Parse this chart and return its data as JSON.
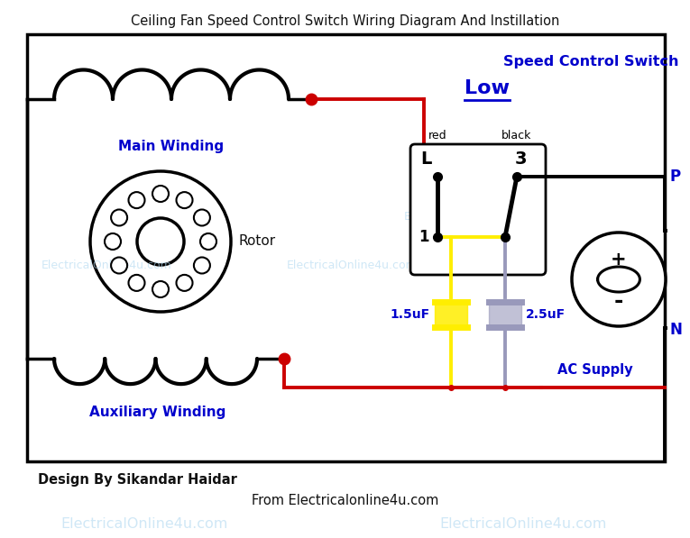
{
  "title": "Ceiling Fan Speed Control Switch Wiring Diagram And Instillation",
  "bg_color": "#ffffff",
  "wire_red": "#cc0000",
  "wire_black": "#111111",
  "wire_yellow": "#ffee00",
  "wire_purple": "#9999bb",
  "text_blue": "#0000cc",
  "text_black": "#111111",
  "wm_color": "#b0d8f0",
  "label_main": "Main Winding",
  "label_aux": "Auxiliary Winding",
  "label_rotor": "Rotor",
  "label_scs": "Speed Control Switch",
  "label_low": "Low",
  "label_L": "L",
  "label_3": "3",
  "label_1": "1",
  "label_red": "red",
  "label_black_w": "black",
  "label_cap1": "1.5uF",
  "label_cap2": "2.5uF",
  "label_P": "P",
  "label_N": "N",
  "label_ac": "AC Supply",
  "label_plus": "+",
  "label_minus": "-",
  "footer_left": "Design By Sikandar Haidar",
  "footer_center": "From Electricalonline4u.com",
  "wm_text": "ElectricalOnline4u.com"
}
